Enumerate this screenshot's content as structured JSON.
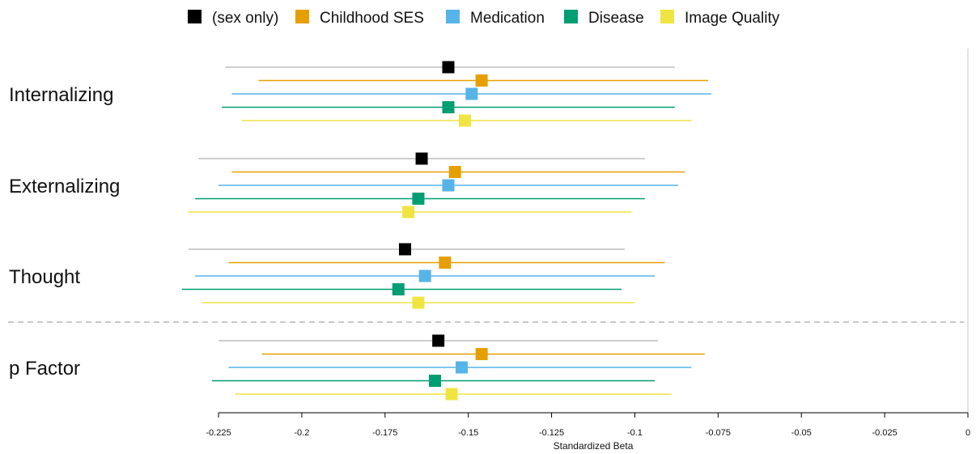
{
  "chart_data": {
    "type": "forest",
    "xlabel": "Standardized Beta",
    "xlim": [
      -0.225,
      0
    ],
    "xticks": [
      -0.225,
      -0.2,
      -0.175,
      -0.15,
      -0.125,
      -0.1,
      -0.075,
      -0.05,
      -0.025,
      0
    ],
    "xtick_labels": [
      "-0.225",
      "-0.2",
      "-0.175",
      "-0.15",
      "-0.125",
      "-0.1",
      "-0.075",
      "-0.05",
      "-0.025",
      "0"
    ],
    "legend_position": "top",
    "separator": "dashed line above p Factor",
    "series": [
      {
        "name": "(sex only)",
        "color": "#000000",
        "ci_color": "#bdbdbd"
      },
      {
        "name": "Childhood SES",
        "color": "#E69F00",
        "ci_color": "#E69F00"
      },
      {
        "name": "Medication",
        "color": "#56B4E9",
        "ci_color": "#56B4E9"
      },
      {
        "name": "Disease",
        "color": "#009E73",
        "ci_color": "#009E73"
      },
      {
        "name": "Image Quality",
        "color": "#F0E442",
        "ci_color": "#F0E442"
      }
    ],
    "groups": [
      {
        "label": "Internalizing",
        "estimates": [
          {
            "beta": -0.156,
            "lower": -0.223,
            "upper": -0.088
          },
          {
            "beta": -0.146,
            "lower": -0.213,
            "upper": -0.078
          },
          {
            "beta": -0.149,
            "lower": -0.221,
            "upper": -0.077
          },
          {
            "beta": -0.156,
            "lower": -0.224,
            "upper": -0.088
          },
          {
            "beta": -0.151,
            "lower": -0.218,
            "upper": -0.083
          }
        ]
      },
      {
        "label": "Externalizing",
        "estimates": [
          {
            "beta": -0.164,
            "lower": -0.231,
            "upper": -0.097
          },
          {
            "beta": -0.154,
            "lower": -0.221,
            "upper": -0.085
          },
          {
            "beta": -0.156,
            "lower": -0.225,
            "upper": -0.087
          },
          {
            "beta": -0.165,
            "lower": -0.232,
            "upper": -0.097
          },
          {
            "beta": -0.168,
            "lower": -0.234,
            "upper": -0.101
          }
        ]
      },
      {
        "label": "Thought",
        "estimates": [
          {
            "beta": -0.169,
            "lower": -0.234,
            "upper": -0.103
          },
          {
            "beta": -0.157,
            "lower": -0.222,
            "upper": -0.091
          },
          {
            "beta": -0.163,
            "lower": -0.232,
            "upper": -0.094
          },
          {
            "beta": -0.171,
            "lower": -0.236,
            "upper": -0.104
          },
          {
            "beta": -0.165,
            "lower": -0.23,
            "upper": -0.1
          }
        ]
      },
      {
        "label": "p Factor",
        "estimates": [
          {
            "beta": -0.159,
            "lower": -0.225,
            "upper": -0.093
          },
          {
            "beta": -0.146,
            "lower": -0.212,
            "upper": -0.079
          },
          {
            "beta": -0.152,
            "lower": -0.222,
            "upper": -0.083
          },
          {
            "beta": -0.16,
            "lower": -0.227,
            "upper": -0.094
          },
          {
            "beta": -0.155,
            "lower": -0.22,
            "upper": -0.089
          }
        ]
      }
    ]
  }
}
